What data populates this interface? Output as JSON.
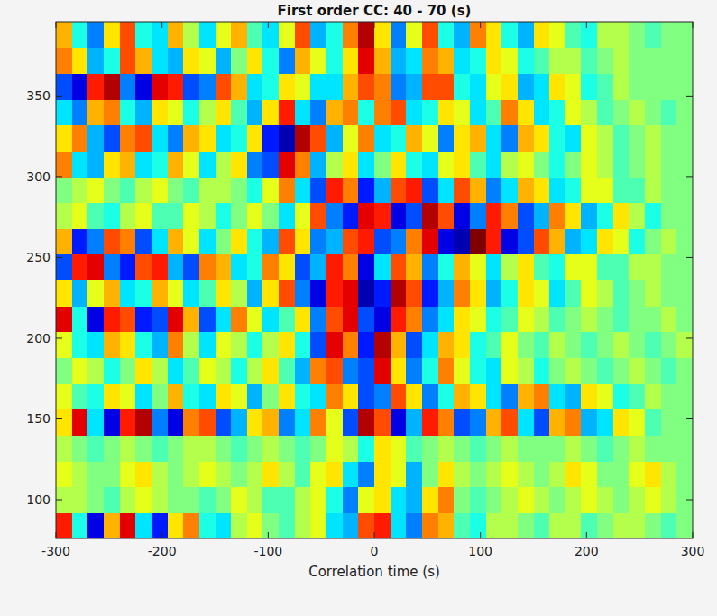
{
  "chart_data": {
    "type": "heatmap",
    "title": "First order CC: 40 - 70 (s)",
    "xlabel": "Correlation time (s)",
    "xlim": [
      -300,
      300
    ],
    "ylim": [
      76,
      396
    ],
    "xticks": [
      -300,
      -200,
      -100,
      0,
      100,
      200,
      300
    ],
    "yticks": [
      100,
      150,
      200,
      250,
      300,
      350
    ],
    "zlim": [
      -1,
      1
    ],
    "x_edges": [
      -300,
      -285,
      -270,
      -255,
      -240,
      -225,
      -210,
      -195,
      -180,
      -165,
      -150,
      -135,
      -120,
      -105,
      -90,
      -75,
      -60,
      -45,
      -30,
      -15,
      0,
      15,
      30,
      45,
      60,
      75,
      90,
      105,
      120,
      135,
      150,
      165,
      180,
      195,
      210,
      225,
      240,
      255,
      270,
      285,
      300
    ],
    "y_edges": [
      76,
      92,
      108,
      124,
      140,
      156,
      172,
      188,
      204,
      220,
      236,
      252,
      268,
      284,
      300,
      316,
      332,
      348,
      364,
      380,
      396
    ],
    "values": [
      [
        0.7,
        -0.2,
        -0.8,
        0.4,
        0.8,
        -0.3,
        -0.7,
        0.3,
        0.5,
        -0.2,
        -0.3,
        0.1,
        0.2,
        0,
        -0.1,
        0.1,
        0.2,
        -0.3,
        -0.4,
        0.6,
        0.7,
        -0.3,
        -0.5,
        0.5,
        0.4,
        -0.1,
        -0.2,
        0.1,
        0.1,
        0,
        -0.1,
        0.1,
        0.1,
        -0.1,
        0,
        0.1,
        0.1,
        0,
        -0.1,
        0
      ],
      [
        0.1,
        0.1,
        0,
        -0.1,
        0.1,
        0.2,
        0.1,
        0,
        0,
        -0.1,
        0,
        0.2,
        0.1,
        -0.1,
        -0.1,
        0.1,
        0.2,
        -0.2,
        -0.5,
        0.2,
        0.3,
        -0.3,
        -0.4,
        0.3,
        0.5,
        0,
        -0.1,
        0,
        0.1,
        0.2,
        0.1,
        0,
        0.1,
        0.2,
        0.1,
        0,
        0.1,
        0.2,
        0.1,
        0
      ],
      [
        0.2,
        0.1,
        0,
        0,
        0.2,
        0.3,
        0.1,
        0,
        0.1,
        0.2,
        0.1,
        0,
        0.1,
        0.3,
        0.1,
        -0.1,
        0.2,
        0.3,
        -0.3,
        -0.5,
        0.3,
        0.2,
        -0.4,
        0,
        0.3,
        0.1,
        0,
        0.1,
        0.2,
        0.1,
        0,
        0.1,
        0.3,
        0.2,
        0,
        0,
        0.2,
        0.3,
        0.1,
        0
      ],
      [
        0.1,
        0,
        -0.1,
        0,
        0.1,
        0,
        -0.1,
        0,
        0.1,
        0.1,
        0,
        -0.1,
        0,
        0.1,
        0,
        -0.1,
        0,
        0.2,
        0.1,
        -0.2,
        0.3,
        0.2,
        -0.1,
        0,
        0.1,
        0,
        -0.1,
        0,
        0.1,
        0,
        0,
        0,
        0.1,
        0,
        -0.1,
        0,
        0.1,
        0,
        0,
        0
      ],
      [
        0.3,
        0.8,
        -0.3,
        -0.8,
        0.7,
        0.9,
        -0.5,
        -0.8,
        0.5,
        0.6,
        -0.6,
        -0.4,
        0.3,
        0.4,
        -0.5,
        -0.3,
        0.5,
        0.2,
        -0.6,
        0.9,
        0.6,
        -0.8,
        -0.4,
        0.7,
        0.5,
        -0.6,
        -0.5,
        0.4,
        0.6,
        -0.3,
        -0.6,
        0.4,
        0.5,
        -0.4,
        -0.3,
        0.3,
        0.2,
        -0.1,
        0,
        0
      ],
      [
        0.2,
        -0.1,
        -0.2,
        0.3,
        0.2,
        -0.3,
        0,
        0.4,
        -0.2,
        -0.3,
        0.3,
        0.2,
        -0.4,
        0,
        0.3,
        -0.2,
        -0.3,
        0.5,
        0.3,
        -0.6,
        -0.5,
        0.6,
        0.3,
        -0.5,
        -0.2,
        0.4,
        0.3,
        -0.3,
        -0.5,
        0.4,
        0.5,
        -0.3,
        -0.4,
        0.3,
        0.2,
        -0.2,
        -0.1,
        0.1,
        0,
        0
      ],
      [
        0,
        0.2,
        0.1,
        -0.2,
        0,
        0.3,
        0.1,
        -0.3,
        -0.1,
        0.2,
        0.1,
        -0.2,
        0.1,
        0.3,
        -0.1,
        -0.4,
        0.5,
        0.6,
        -0.5,
        -0.6,
        0.8,
        0.3,
        -0.5,
        -0.2,
        0.5,
        0.2,
        -0.2,
        -0.3,
        0.2,
        0.1,
        -0.2,
        0,
        0.1,
        0,
        -0.1,
        0,
        0.1,
        0,
        -0.1,
        0
      ],
      [
        0.2,
        -0.2,
        -0.3,
        0.4,
        0.3,
        -0.2,
        -0.4,
        0.5,
        0.1,
        -0.3,
        0.2,
        0.1,
        -0.2,
        0.1,
        0.3,
        -0.2,
        -0.6,
        0.8,
        0.5,
        -0.7,
        0.9,
        0.4,
        -0.6,
        -0.3,
        0.4,
        0.3,
        -0.2,
        -0.1,
        0.2,
        0,
        -0.1,
        0.1,
        0,
        -0.1,
        0,
        0.1,
        0,
        -0.1,
        0,
        0.1
      ],
      [
        0.8,
        -0.2,
        -0.8,
        0.7,
        0.6,
        -0.7,
        -0.6,
        0.8,
        0.4,
        -0.6,
        -0.3,
        0.5,
        0.2,
        -0.3,
        -0.1,
        0.3,
        -0.5,
        0.6,
        0.8,
        -0.6,
        -0.8,
        0.7,
        0.5,
        -0.5,
        -0.3,
        0.3,
        0.2,
        -0.2,
        -0.1,
        0.2,
        0.1,
        -0.1,
        0,
        0.1,
        0,
        -0.1,
        0,
        0,
        0.1,
        0
      ],
      [
        0.3,
        -0.4,
        0.2,
        0.4,
        -0.3,
        -0.2,
        0.4,
        0.2,
        -0.3,
        -0.1,
        0.3,
        0.1,
        -0.4,
        0.3,
        0.6,
        -0.5,
        -0.8,
        0.7,
        0.8,
        -0.9,
        -0.7,
        0.9,
        0.6,
        -0.7,
        -0.4,
        0.5,
        0.3,
        -0.4,
        -0.2,
        0.3,
        0.2,
        -0.3,
        -0.1,
        0.2,
        0.1,
        -0.1,
        0,
        0.1,
        0,
        0
      ],
      [
        -0.6,
        0.7,
        0.8,
        -0.5,
        -0.7,
        0.6,
        0.7,
        -0.4,
        -0.6,
        0.5,
        0.4,
        -0.3,
        -0.2,
        0.5,
        0.3,
        -0.6,
        -0.4,
        0.7,
        0.5,
        -0.8,
        -0.3,
        0.6,
        0.4,
        -0.5,
        -0.2,
        0.4,
        0.2,
        -0.3,
        0.1,
        0.3,
        -0.1,
        -0.2,
        0.2,
        0.2,
        -0.1,
        -0.1,
        0.1,
        0.1,
        0,
        0
      ],
      [
        0.4,
        -0.7,
        -0.5,
        0.6,
        0.5,
        -0.6,
        -0.3,
        0.4,
        0.2,
        -0.3,
        0,
        0.3,
        -0.2,
        -0.4,
        0.6,
        0.3,
        -0.5,
        -0.4,
        0.6,
        0.7,
        -0.6,
        -0.5,
        0.5,
        0.8,
        -0.8,
        -0.9,
        1,
        0.7,
        -0.8,
        -0.6,
        0.6,
        0.4,
        -0.4,
        -0.3,
        0.3,
        0.2,
        -0.2,
        0,
        0.1,
        0
      ],
      [
        0.1,
        0.2,
        -0.1,
        -0.2,
        0.1,
        0.2,
        -0.1,
        -0.1,
        0.2,
        0.1,
        -0.2,
        0,
        0.2,
        0,
        -0.3,
        0.2,
        0.6,
        -0.5,
        -0.7,
        0.8,
        0.7,
        -0.8,
        -0.6,
        0.9,
        0.6,
        -0.8,
        -0.5,
        0.7,
        0.5,
        -0.6,
        -0.4,
        0.5,
        0.3,
        -0.4,
        -0.2,
        0.3,
        0.1,
        -0.2,
        0,
        0
      ],
      [
        0,
        0.1,
        0.2,
        0,
        -0.1,
        0.1,
        0.2,
        0,
        -0.1,
        0.1,
        0.1,
        0,
        -0.2,
        0.2,
        0.5,
        -0.3,
        -0.6,
        0.7,
        0.5,
        -0.7,
        -0.4,
        0.6,
        0.7,
        -0.6,
        -0.3,
        0.6,
        0.4,
        -0.5,
        -0.3,
        0.4,
        0.3,
        -0.3,
        -0.2,
        0.2,
        0.2,
        -0.1,
        -0.1,
        0.1,
        0,
        0
      ],
      [
        0.5,
        -0.3,
        -0.4,
        0.3,
        0.4,
        -0.3,
        -0.2,
        0.4,
        0.2,
        -0.3,
        0.1,
        0.3,
        -0.5,
        -0.6,
        0.8,
        0.5,
        -0.4,
        0.1,
        0.3,
        -0.3,
        0,
        0.3,
        -0.2,
        -0.3,
        0.2,
        0.3,
        -0.1,
        -0.3,
        0.1,
        0.2,
        0,
        -0.2,
        0,
        0.2,
        0.1,
        -0.1,
        0,
        0.1,
        0,
        0
      ],
      [
        0.3,
        0.5,
        -0.4,
        -0.6,
        0.5,
        0.6,
        -0.3,
        -0.5,
        0.4,
        0.3,
        -0.3,
        -0.2,
        0.3,
        -0.7,
        -0.9,
        0.9,
        0.6,
        -0.4,
        0.2,
        0.5,
        -0.3,
        -0.2,
        0.4,
        0.2,
        -0.5,
        0.3,
        0.4,
        -0.3,
        -0.5,
        0.4,
        0.3,
        -0.2,
        -0.3,
        0.2,
        0.1,
        -0.1,
        0,
        0.1,
        0,
        0
      ],
      [
        -0.3,
        -0.5,
        0.4,
        0.5,
        -0.2,
        -0.4,
        0.3,
        0.2,
        -0.2,
        0.1,
        0.3,
        -0.1,
        -0.4,
        0.3,
        0.7,
        -0.3,
        -0.5,
        0.4,
        0.5,
        -0.2,
        0.5,
        0.6,
        -0.3,
        -0.2,
        0.3,
        0.2,
        -0.3,
        -0.1,
        0.5,
        0.3,
        -0.3,
        -0.2,
        0.2,
        0.1,
        -0.1,
        0,
        0.1,
        0,
        -0.1,
        0
      ],
      [
        -0.6,
        -0.8,
        0.7,
        0.9,
        -0.5,
        -0.8,
        0.8,
        0.7,
        -0.6,
        -0.5,
        0.6,
        0.4,
        -0.3,
        -0.2,
        0.3,
        0.2,
        -0.3,
        -0.3,
        0.4,
        0.6,
        0.5,
        -0.5,
        -0.4,
        0.6,
        0.6,
        -0.2,
        -0.3,
        0.2,
        0.3,
        -0.4,
        -0.3,
        0.3,
        0.2,
        -0.2,
        -0.1,
        0.1,
        0,
        0,
        0,
        0
      ],
      [
        0.5,
        0.3,
        -0.4,
        -0.2,
        0.6,
        0.4,
        -0.3,
        -0.4,
        0.3,
        0.2,
        -0.4,
        0,
        0.3,
        -0.2,
        -0.5,
        0.4,
        0.2,
        -0.2,
        0.3,
        0.8,
        0.4,
        -0.4,
        -0.3,
        0.5,
        0.4,
        -0.3,
        -0.2,
        0.3,
        0.2,
        -0.2,
        -0.1,
        0.1,
        0.1,
        -0.1,
        0,
        0.1,
        0,
        0,
        0,
        0
      ],
      [
        0.4,
        -0.2,
        -0.5,
        0.3,
        0.6,
        -0.2,
        -0.3,
        0.4,
        0.1,
        -0.3,
        0.2,
        0.4,
        -0.1,
        -0.3,
        0.2,
        0.6,
        -0.4,
        -0.2,
        0.5,
        0.9,
        0.3,
        -0.5,
        0.2,
        0.6,
        -0.2,
        -0.4,
        0.5,
        0.3,
        -0.2,
        -0.4,
        0.3,
        0.2,
        -0.1,
        -0.2,
        0.1,
        0.1,
        0,
        -0.1,
        0,
        0
      ]
    ]
  }
}
